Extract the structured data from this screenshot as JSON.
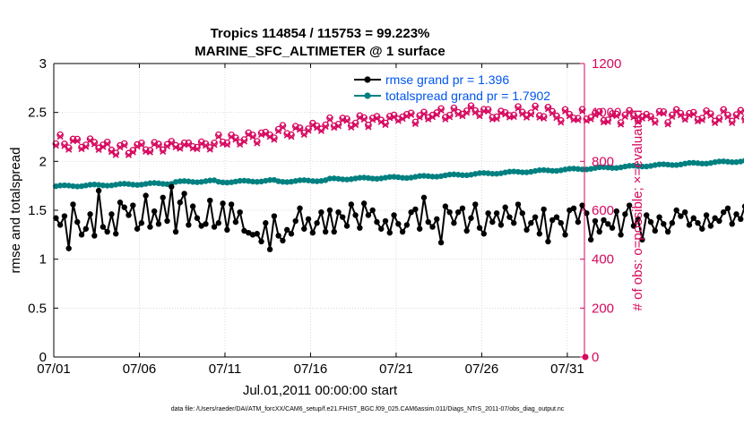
{
  "chart_data": {
    "type": "line",
    "title_line1": "Tropics 114854 / 115753 = 99.223%",
    "title_line2": "MARINE_SFC_ALTIMETER @ 1 surface",
    "xlabel": "Jul.01,2011 00:00:00 start",
    "ylabel_left": "rmse and totalspread",
    "ylabel_right": "# of obs: o=possible; ×=evaluated",
    "footnote": "data file: /Users/raeder/DAI/ATM_forcXX/CAM6_setup/f.e21.FHIST_BGC.f09_025.CAM6assim.011/Diags_NTrS_2011-07/obs_diag_output.nc",
    "x_unit": "day of July 2011",
    "xlim": [
      1,
      32
    ],
    "ylim_left": [
      0,
      3
    ],
    "ylim_right": [
      0,
      1200
    ],
    "x_ticks": [
      1,
      6,
      11,
      16,
      21,
      26,
      31
    ],
    "x_tick_labels": [
      "07/01",
      "07/06",
      "07/11",
      "07/16",
      "07/21",
      "07/26",
      "07/31"
    ],
    "y_ticks_left": [
      "0",
      "0.5",
      "1",
      "1.5",
      "2",
      "2.5",
      "3"
    ],
    "y_ticks_right": [
      "0",
      "200",
      "400",
      "600",
      "800",
      "1000",
      "1200"
    ],
    "grid": true,
    "legend_position": "top-right",
    "legend": [
      "rmse grand pr = 1.396",
      "totalspread grand pr = 1.7902"
    ],
    "colors": {
      "rmse": "#000000",
      "spread": "#008080",
      "obs": "#d6085f",
      "legend_text": "#0055ee",
      "grid": "#d9d9d9"
    },
    "series": [
      {
        "name": "rmse grand pr = 1.396",
        "axis": "left",
        "values": [
          1.42,
          1.35,
          1.44,
          1.11,
          1.56,
          1.38,
          1.25,
          1.31,
          1.46,
          1.24,
          1.7,
          1.33,
          1.28,
          1.46,
          1.26,
          1.58,
          1.53,
          1.45,
          1.55,
          1.31,
          1.37,
          1.65,
          1.33,
          1.49,
          1.36,
          1.63,
          1.39,
          1.74,
          1.28,
          1.58,
          1.67,
          1.35,
          1.54,
          1.42,
          1.34,
          1.36,
          1.6,
          1.33,
          1.37,
          1.57,
          1.3,
          1.56,
          1.38,
          1.48,
          1.29,
          1.27,
          1.25,
          1.26,
          1.18,
          1.37,
          1.1,
          1.44,
          1.24,
          1.19,
          1.3,
          1.26,
          1.39,
          1.52,
          1.31,
          1.41,
          1.27,
          1.37,
          1.48,
          1.28,
          1.5,
          1.28,
          1.48,
          1.43,
          1.34,
          1.56,
          1.45,
          1.32,
          1.57,
          1.45,
          1.5,
          1.38,
          1.31,
          1.39,
          1.27,
          1.45,
          1.36,
          1.28,
          1.35,
          1.48,
          1.51,
          1.31,
          1.63,
          1.38,
          1.33,
          1.41,
          1.17,
          1.54,
          1.48,
          1.37,
          1.48,
          1.52,
          1.29,
          1.42,
          1.56,
          1.32,
          1.26,
          1.47,
          1.38,
          1.47,
          1.35,
          1.53,
          1.43,
          1.37,
          1.56,
          1.47,
          1.3,
          1.37,
          1.43,
          1.26,
          1.51,
          1.18,
          1.4,
          1.43,
          1.37,
          1.25,
          1.5,
          1.52,
          1.38,
          1.55,
          1.47,
          1.2,
          1.39,
          1.28,
          1.4,
          1.36,
          1.32,
          1.49,
          1.25,
          1.46,
          1.55,
          1.34,
          1.41,
          1.2,
          1.45,
          1.38,
          1.29,
          1.43,
          1.36,
          1.28,
          1.37,
          1.5,
          1.44,
          1.48,
          1.35,
          1.42,
          1.37,
          1.31,
          1.45,
          1.34,
          1.42,
          1.39,
          1.48,
          1.52,
          1.36,
          1.46,
          1.41,
          1.54,
          1.38,
          1.45,
          1.51,
          1.43,
          1.48,
          1.36,
          1.56,
          1.47,
          1.36,
          1.42,
          1.52,
          1.45,
          1.62,
          1.41,
          1.56,
          1.6,
          1.45,
          1.63,
          1.52,
          1.66,
          1.42,
          1.48
        ]
      },
      {
        "name": "totalspread grand pr = 1.7902",
        "axis": "left",
        "values_start": 1.75,
        "values_note": "smooth, ~1.73 to 1.84"
      }
    ],
    "obs_note": "possible and evaluated counts per 6-hour window (right axis)"
  }
}
